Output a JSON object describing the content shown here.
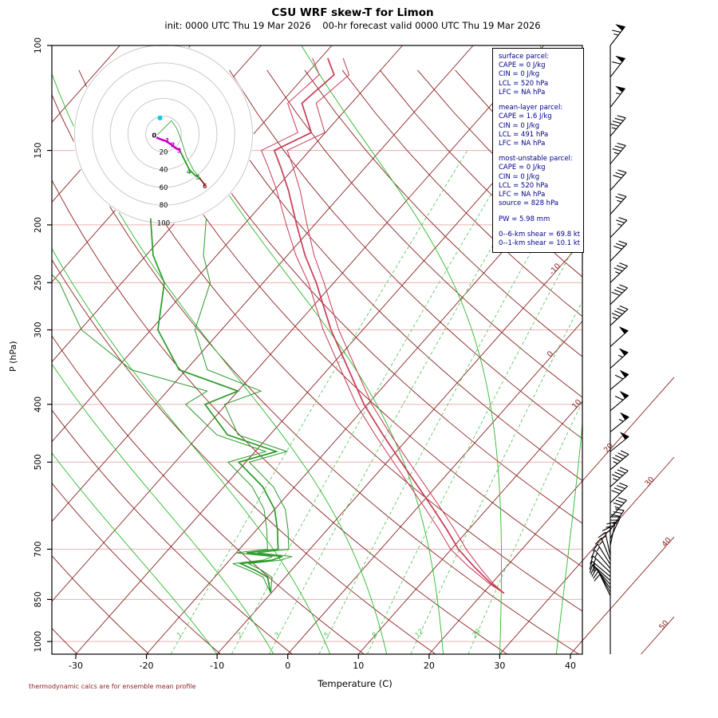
{
  "header": {
    "title": "CSU WRF skew-T for Limon",
    "subtitle": "init: 0000 UTC Thu 19 Mar 2026    00-hr forecast valid 0000 UTC Thu 19 Mar 2026"
  },
  "axes_titles": {
    "x": "Temperature (C)",
    "y": "P (hPa)"
  },
  "footer": {
    "note": "thermodynamic calcs are for ensemble mean profile"
  },
  "info": {
    "sections": [
      [
        "surface parcel:",
        "CAPE = 0 J/kg",
        "CIN = 0 J/kg",
        "LCL = 520 hPa",
        "LFC = NA hPa"
      ],
      [
        "mean-layer parcel:",
        "CAPE = 1.6 J/kg",
        "CIN = 0 J/kg",
        "LCL = 491 hPa",
        "LFC = NA hPa"
      ],
      [
        "most-unstable parcel:",
        "CAPE = 0 J/kg",
        "CIN = 0 J/kg",
        "LCL = 520 hPa",
        "LFC = NA hPa",
        "source = 828 hPa"
      ],
      [
        "PW =  5.98 mm"
      ],
      [
        "0--6-km shear = 69.8 kt",
        "0--1-km shear = 10.1 kt"
      ]
    ]
  },
  "chart_data": {
    "type": "skew-t-log-p",
    "model": "CSU WRF",
    "station": "Limon",
    "init": "0000 UTC Thu 19 Mar 2026",
    "valid": "0000 UTC Thu 19 Mar 2026",
    "forecast_hour": "00-hr",
    "axes": {
      "pressure_ticks": [
        100,
        150,
        200,
        250,
        300,
        400,
        500,
        700,
        850,
        1000
      ],
      "temp_ticks": [
        -30,
        -20,
        -10,
        0,
        10,
        20,
        30,
        40
      ],
      "isotherm_labels": [
        -10,
        0,
        10,
        20,
        30,
        40,
        50
      ],
      "pressure_range": [
        100,
        1050
      ]
    },
    "grid": {
      "pressure_lines": [
        150,
        200,
        250,
        300,
        400,
        500,
        700,
        850,
        1000
      ],
      "isotherms": {
        "from": -120,
        "to": 50,
        "step": 10
      },
      "dry_adiabats_K": {
        "from": 240,
        "to": 450,
        "step": 10
      },
      "moist_adiabats_surface_C": [
        -10,
        -2,
        6,
        14,
        22,
        30,
        38,
        46
      ],
      "mixing_ratios_gkg": [
        1,
        2,
        3,
        5,
        8,
        12,
        20
      ]
    },
    "temperature_profile": {
      "pressure_hPa": [
        830,
        800,
        750,
        700,
        650,
        600,
        550,
        500,
        450,
        400,
        350,
        300,
        250,
        225,
        200,
        175,
        160,
        150,
        140,
        125,
        112,
        105
      ],
      "temp_C": [
        23,
        20,
        15.5,
        11,
        7,
        2.5,
        -2.5,
        -8,
        -14,
        -20.5,
        -27,
        -34.5,
        -42.5,
        -47.5,
        -52.5,
        -58,
        -62,
        -65,
        -62,
        -67,
        -66,
        -69
      ]
    },
    "dewpoint_profile": {
      "pressure_hPa": [
        830,
        810,
        780,
        760,
        740,
        730,
        720,
        710,
        700,
        680,
        650,
        600,
        550,
        500,
        480,
        450,
        400,
        380,
        350,
        300,
        250,
        225,
        195
      ],
      "temp_C": [
        -10,
        -11,
        -12.5,
        -15,
        -18,
        -14,
        -13,
        -18.5,
        -14.5,
        -15.5,
        -17,
        -20,
        -24.5,
        -31,
        -27,
        -36,
        -43,
        -40,
        -51,
        -59,
        -64,
        -69,
        -74
      ]
    },
    "wind_barbs_p_spd_ang": [
      [
        100,
        65,
        52
      ],
      [
        113,
        60,
        52
      ],
      [
        127,
        55,
        52
      ],
      [
        142,
        45,
        50
      ],
      [
        158,
        35,
        50
      ],
      [
        175,
        30,
        48
      ],
      [
        192,
        25,
        48
      ],
      [
        210,
        25,
        46
      ],
      [
        230,
        30,
        46
      ],
      [
        250,
        35,
        44
      ],
      [
        272,
        40,
        44
      ],
      [
        295,
        45,
        43
      ],
      [
        320,
        50,
        42
      ],
      [
        348,
        55,
        42
      ],
      [
        378,
        60,
        40
      ],
      [
        410,
        60,
        40
      ],
      [
        445,
        55,
        39
      ],
      [
        480,
        50,
        39
      ],
      [
        515,
        45,
        40
      ],
      [
        550,
        45,
        42
      ],
      [
        585,
        40,
        44
      ],
      [
        620,
        35,
        47
      ],
      [
        650,
        30,
        55
      ],
      [
        672,
        25,
        65
      ],
      [
        690,
        22,
        78
      ],
      [
        705,
        20,
        90
      ],
      [
        718,
        18,
        102
      ],
      [
        730,
        15,
        112
      ],
      [
        742,
        15,
        122
      ],
      [
        754,
        18,
        130
      ],
      [
        766,
        20,
        136
      ],
      [
        778,
        18,
        140
      ],
      [
        790,
        15,
        138
      ],
      [
        802,
        12,
        132
      ],
      [
        814,
        10,
        126
      ],
      [
        826,
        10,
        120
      ],
      [
        838,
        10,
        116
      ]
    ],
    "hodograph": {
      "rings_kt": [
        20,
        40,
        60,
        80,
        100
      ],
      "segments": [
        {
          "color": "#cc00cc",
          "width": 2.6,
          "pts": [
            [
              -8,
              -4
            ],
            [
              -3,
              -6
            ],
            [
              3,
              -8
            ],
            [
              9,
              -12
            ],
            [
              14,
              -16
            ],
            [
              18,
              -18
            ]
          ]
        },
        {
          "color": "#2a9a2a",
          "width": 1.8,
          "pts": [
            [
              18,
              -18
            ],
            [
              23,
              -28
            ],
            [
              29,
              -40
            ],
            [
              35,
              -46
            ],
            [
              40,
              -49
            ]
          ]
        },
        {
          "color": "#8b2323",
          "width": 1.8,
          "pts": [
            [
              40,
              -49
            ],
            [
              44,
              -54
            ],
            [
              47,
              -58
            ]
          ]
        }
      ],
      "member_pts": [
        [
          -7,
          -1
        ],
        [
          1,
          7
        ],
        [
          9,
          15
        ],
        [
          15,
          6
        ],
        [
          20,
          -7
        ],
        [
          26,
          -26
        ],
        [
          34,
          -41
        ],
        [
          43,
          -52
        ]
      ],
      "km_labels": [
        {
          "km": "0",
          "color": "#000000",
          "u": -13,
          "v": -4
        },
        {
          "km": "1",
          "color": "#cc00cc",
          "u": 2,
          "v": -10
        },
        {
          "km": "2",
          "color": "#cc00cc",
          "u": 8,
          "v": -15
        },
        {
          "km": "3",
          "color": "#cc00cc",
          "u": 15,
          "v": -21
        },
        {
          "km": "4",
          "color": "#2a9a2a",
          "u": 26,
          "v": -45
        },
        {
          "km": "5",
          "color": "#2a9a2a",
          "u": 36,
          "v": -51
        },
        {
          "km": "6",
          "color": "#8b2323",
          "u": 44,
          "v": -61
        }
      ],
      "storm_motion_dot": {
        "u": -4,
        "v": 18,
        "color": "#00c8e8"
      }
    },
    "colors": {
      "grid_red": "#8b2323",
      "pressure_line": "#e9b0b0",
      "moist_adiabat": "#2db92d",
      "mixing": "#63c763",
      "temp_trace": "#c93a56",
      "dew_trace": "#2a9a2a",
      "barb": "#000000",
      "info_text": "#00008b"
    }
  }
}
